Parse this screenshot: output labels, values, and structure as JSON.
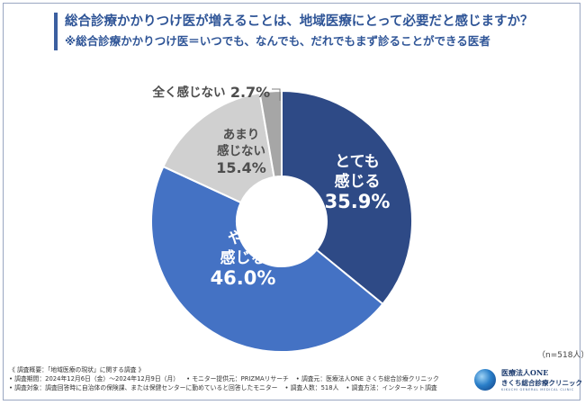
{
  "header": {
    "question": "総合診療かかりつけ医が増えることは、地域医療にとって必要だと感じますか？",
    "note": "※総合診療かかりつけ医＝いつでも、なんでも、だれでもまず診ることができる医者"
  },
  "colors": {
    "title": "#2f5597",
    "slice_1": "#2e4a86",
    "slice_2": "#4472c4",
    "slice_3": "#d0d0d0",
    "slice_4": "#a6a6a6"
  },
  "chart_data": {
    "type": "pie",
    "style": "donut",
    "start": "top, clockwise",
    "slices": [
      {
        "label_lines": [
          "とても",
          "感じる"
        ],
        "value": 35.9,
        "value_text": "35.9%"
      },
      {
        "label_lines": [
          "やや",
          "感じる"
        ],
        "value": 46.0,
        "value_text": "46.0%"
      },
      {
        "label_lines": [
          "あまり",
          "感じない"
        ],
        "value": 15.4,
        "value_text": "15.4%"
      },
      {
        "label_lines": [
          "全く感じない"
        ],
        "value": 2.7,
        "value_text": "2.7%"
      }
    ]
  },
  "sample_size": "（n=518人）",
  "survey": {
    "overview": "《 調査概要：「地域医療の現状」に関する調査 》",
    "period": "• 調査期間：2024年12月6日（金）～2024年12月9日（月）",
    "monitor": "• モニター提供元：PRIZMAリサーチ",
    "organizer": "• 調査元：医療法人ONE きくち総合診療クリニック",
    "target": "• 調査対象：調査回答時に自治体の保険課、または保健センターに勤めていると回答したモニター",
    "count": "• 調査人数：518人",
    "method": "• 調査方法：インターネット調査"
  },
  "logo": {
    "line1": "医療法人ONE",
    "line2": "きくち総合診療クリニック",
    "line3": "KIKUCHI GENERAL MEDICAL CLINIC"
  }
}
